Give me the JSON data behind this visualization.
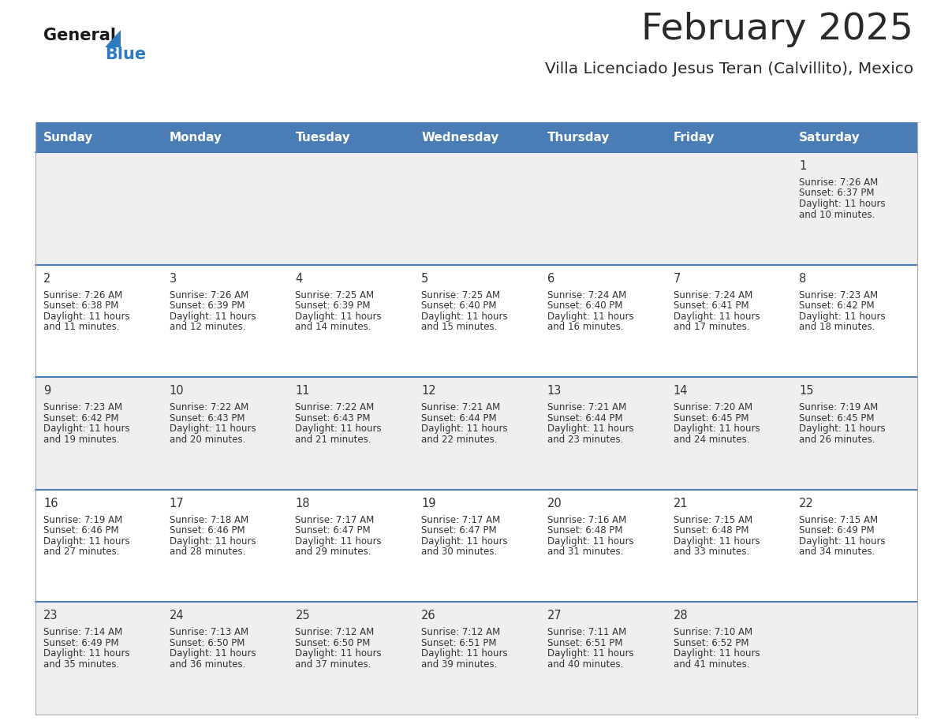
{
  "title": "February 2025",
  "subtitle": "Villa Licenciado Jesus Teran (Calvillito), Mexico",
  "header_bg": "#4a7db5",
  "header_text": "#ffffff",
  "row_sep_color": "#4a7db5",
  "text_color": "#333333",
  "days_of_week": [
    "Sunday",
    "Monday",
    "Tuesday",
    "Wednesday",
    "Thursday",
    "Friday",
    "Saturday"
  ],
  "calendar_data": [
    [
      null,
      null,
      null,
      null,
      null,
      null,
      {
        "day": "1",
        "sunrise": "7:26 AM",
        "sunset": "6:37 PM",
        "daylight_h": "11 hours",
        "daylight_m": "and 10 minutes."
      }
    ],
    [
      {
        "day": "2",
        "sunrise": "7:26 AM",
        "sunset": "6:38 PM",
        "daylight_h": "11 hours",
        "daylight_m": "and 11 minutes."
      },
      {
        "day": "3",
        "sunrise": "7:26 AM",
        "sunset": "6:39 PM",
        "daylight_h": "11 hours",
        "daylight_m": "and 12 minutes."
      },
      {
        "day": "4",
        "sunrise": "7:25 AM",
        "sunset": "6:39 PM",
        "daylight_h": "11 hours",
        "daylight_m": "and 14 minutes."
      },
      {
        "day": "5",
        "sunrise": "7:25 AM",
        "sunset": "6:40 PM",
        "daylight_h": "11 hours",
        "daylight_m": "and 15 minutes."
      },
      {
        "day": "6",
        "sunrise": "7:24 AM",
        "sunset": "6:40 PM",
        "daylight_h": "11 hours",
        "daylight_m": "and 16 minutes."
      },
      {
        "day": "7",
        "sunrise": "7:24 AM",
        "sunset": "6:41 PM",
        "daylight_h": "11 hours",
        "daylight_m": "and 17 minutes."
      },
      {
        "day": "8",
        "sunrise": "7:23 AM",
        "sunset": "6:42 PM",
        "daylight_h": "11 hours",
        "daylight_m": "and 18 minutes."
      }
    ],
    [
      {
        "day": "9",
        "sunrise": "7:23 AM",
        "sunset": "6:42 PM",
        "daylight_h": "11 hours",
        "daylight_m": "and 19 minutes."
      },
      {
        "day": "10",
        "sunrise": "7:22 AM",
        "sunset": "6:43 PM",
        "daylight_h": "11 hours",
        "daylight_m": "and 20 minutes."
      },
      {
        "day": "11",
        "sunrise": "7:22 AM",
        "sunset": "6:43 PM",
        "daylight_h": "11 hours",
        "daylight_m": "and 21 minutes."
      },
      {
        "day": "12",
        "sunrise": "7:21 AM",
        "sunset": "6:44 PM",
        "daylight_h": "11 hours",
        "daylight_m": "and 22 minutes."
      },
      {
        "day": "13",
        "sunrise": "7:21 AM",
        "sunset": "6:44 PM",
        "daylight_h": "11 hours",
        "daylight_m": "and 23 minutes."
      },
      {
        "day": "14",
        "sunrise": "7:20 AM",
        "sunset": "6:45 PM",
        "daylight_h": "11 hours",
        "daylight_m": "and 24 minutes."
      },
      {
        "day": "15",
        "sunrise": "7:19 AM",
        "sunset": "6:45 PM",
        "daylight_h": "11 hours",
        "daylight_m": "and 26 minutes."
      }
    ],
    [
      {
        "day": "16",
        "sunrise": "7:19 AM",
        "sunset": "6:46 PM",
        "daylight_h": "11 hours",
        "daylight_m": "and 27 minutes."
      },
      {
        "day": "17",
        "sunrise": "7:18 AM",
        "sunset": "6:46 PM",
        "daylight_h": "11 hours",
        "daylight_m": "and 28 minutes."
      },
      {
        "day": "18",
        "sunrise": "7:17 AM",
        "sunset": "6:47 PM",
        "daylight_h": "11 hours",
        "daylight_m": "and 29 minutes."
      },
      {
        "day": "19",
        "sunrise": "7:17 AM",
        "sunset": "6:47 PM",
        "daylight_h": "11 hours",
        "daylight_m": "and 30 minutes."
      },
      {
        "day": "20",
        "sunrise": "7:16 AM",
        "sunset": "6:48 PM",
        "daylight_h": "11 hours",
        "daylight_m": "and 31 minutes."
      },
      {
        "day": "21",
        "sunrise": "7:15 AM",
        "sunset": "6:48 PM",
        "daylight_h": "11 hours",
        "daylight_m": "and 33 minutes."
      },
      {
        "day": "22",
        "sunrise": "7:15 AM",
        "sunset": "6:49 PM",
        "daylight_h": "11 hours",
        "daylight_m": "and 34 minutes."
      }
    ],
    [
      {
        "day": "23",
        "sunrise": "7:14 AM",
        "sunset": "6:49 PM",
        "daylight_h": "11 hours",
        "daylight_m": "and 35 minutes."
      },
      {
        "day": "24",
        "sunrise": "7:13 AM",
        "sunset": "6:50 PM",
        "daylight_h": "11 hours",
        "daylight_m": "and 36 minutes."
      },
      {
        "day": "25",
        "sunrise": "7:12 AM",
        "sunset": "6:50 PM",
        "daylight_h": "11 hours",
        "daylight_m": "and 37 minutes."
      },
      {
        "day": "26",
        "sunrise": "7:12 AM",
        "sunset": "6:51 PM",
        "daylight_h": "11 hours",
        "daylight_m": "and 39 minutes."
      },
      {
        "day": "27",
        "sunrise": "7:11 AM",
        "sunset": "6:51 PM",
        "daylight_h": "11 hours",
        "daylight_m": "and 40 minutes."
      },
      {
        "day": "28",
        "sunrise": "7:10 AM",
        "sunset": "6:52 PM",
        "daylight_h": "11 hours",
        "daylight_m": "and 41 minutes."
      },
      null
    ]
  ],
  "fig_width": 11.88,
  "fig_height": 9.18,
  "dpi": 100
}
